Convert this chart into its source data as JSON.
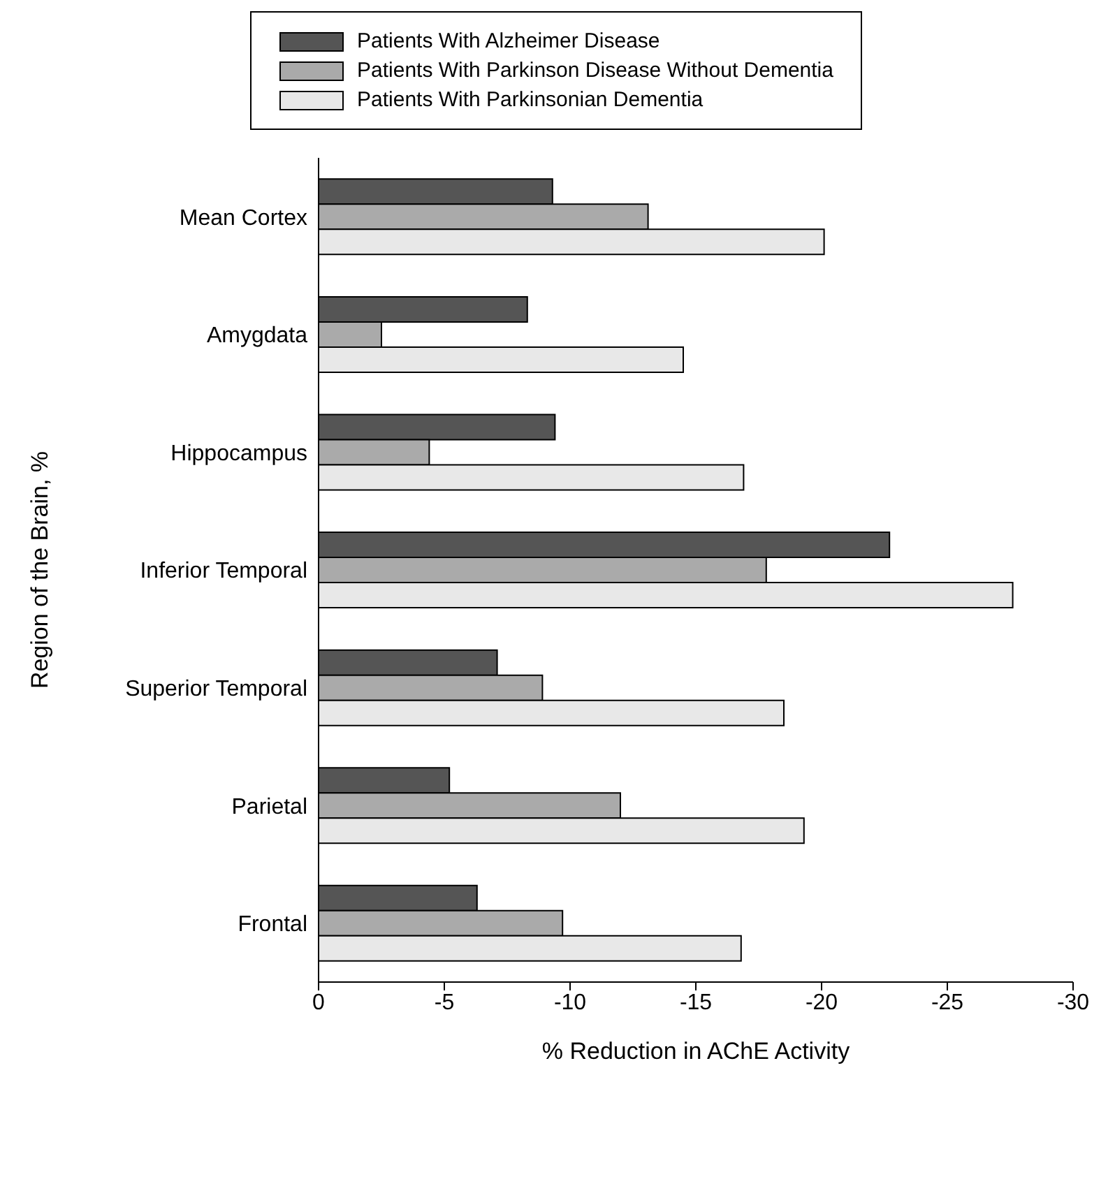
{
  "chart_data": {
    "type": "bar",
    "orientation": "horizontal",
    "xlabel": "% Reduction in AChE Activity",
    "ylabel": "Region of the Brain, %",
    "categories": [
      "Mean Cortex",
      "Amygdata",
      "Hippocampus",
      "Inferior Temporal",
      "Superior Temporal",
      "Parietal",
      "Frontal"
    ],
    "series": [
      {
        "name": "Patients With Alzheimer Disease",
        "color": "#555555",
        "values": [
          -9.3,
          -8.3,
          -9.4,
          -22.7,
          -7.1,
          -5.2,
          -6.3
        ]
      },
      {
        "name": "Patients With Parkinson Disease Without Dementia",
        "color": "#aaaaaa",
        "values": [
          -13.1,
          -2.5,
          -4.4,
          -17.8,
          -8.9,
          -12.0,
          -9.7
        ]
      },
      {
        "name": "Patients With Parkinsonian Dementia",
        "color": "#e8e8e8",
        "values": [
          -20.1,
          -14.5,
          -16.9,
          -27.6,
          -18.5,
          -19.3,
          -16.8
        ]
      }
    ],
    "xlim": [
      0,
      -30
    ],
    "xticks": [
      0,
      -5,
      -10,
      -15,
      -20,
      -25,
      -30
    ],
    "legend": "top"
  }
}
